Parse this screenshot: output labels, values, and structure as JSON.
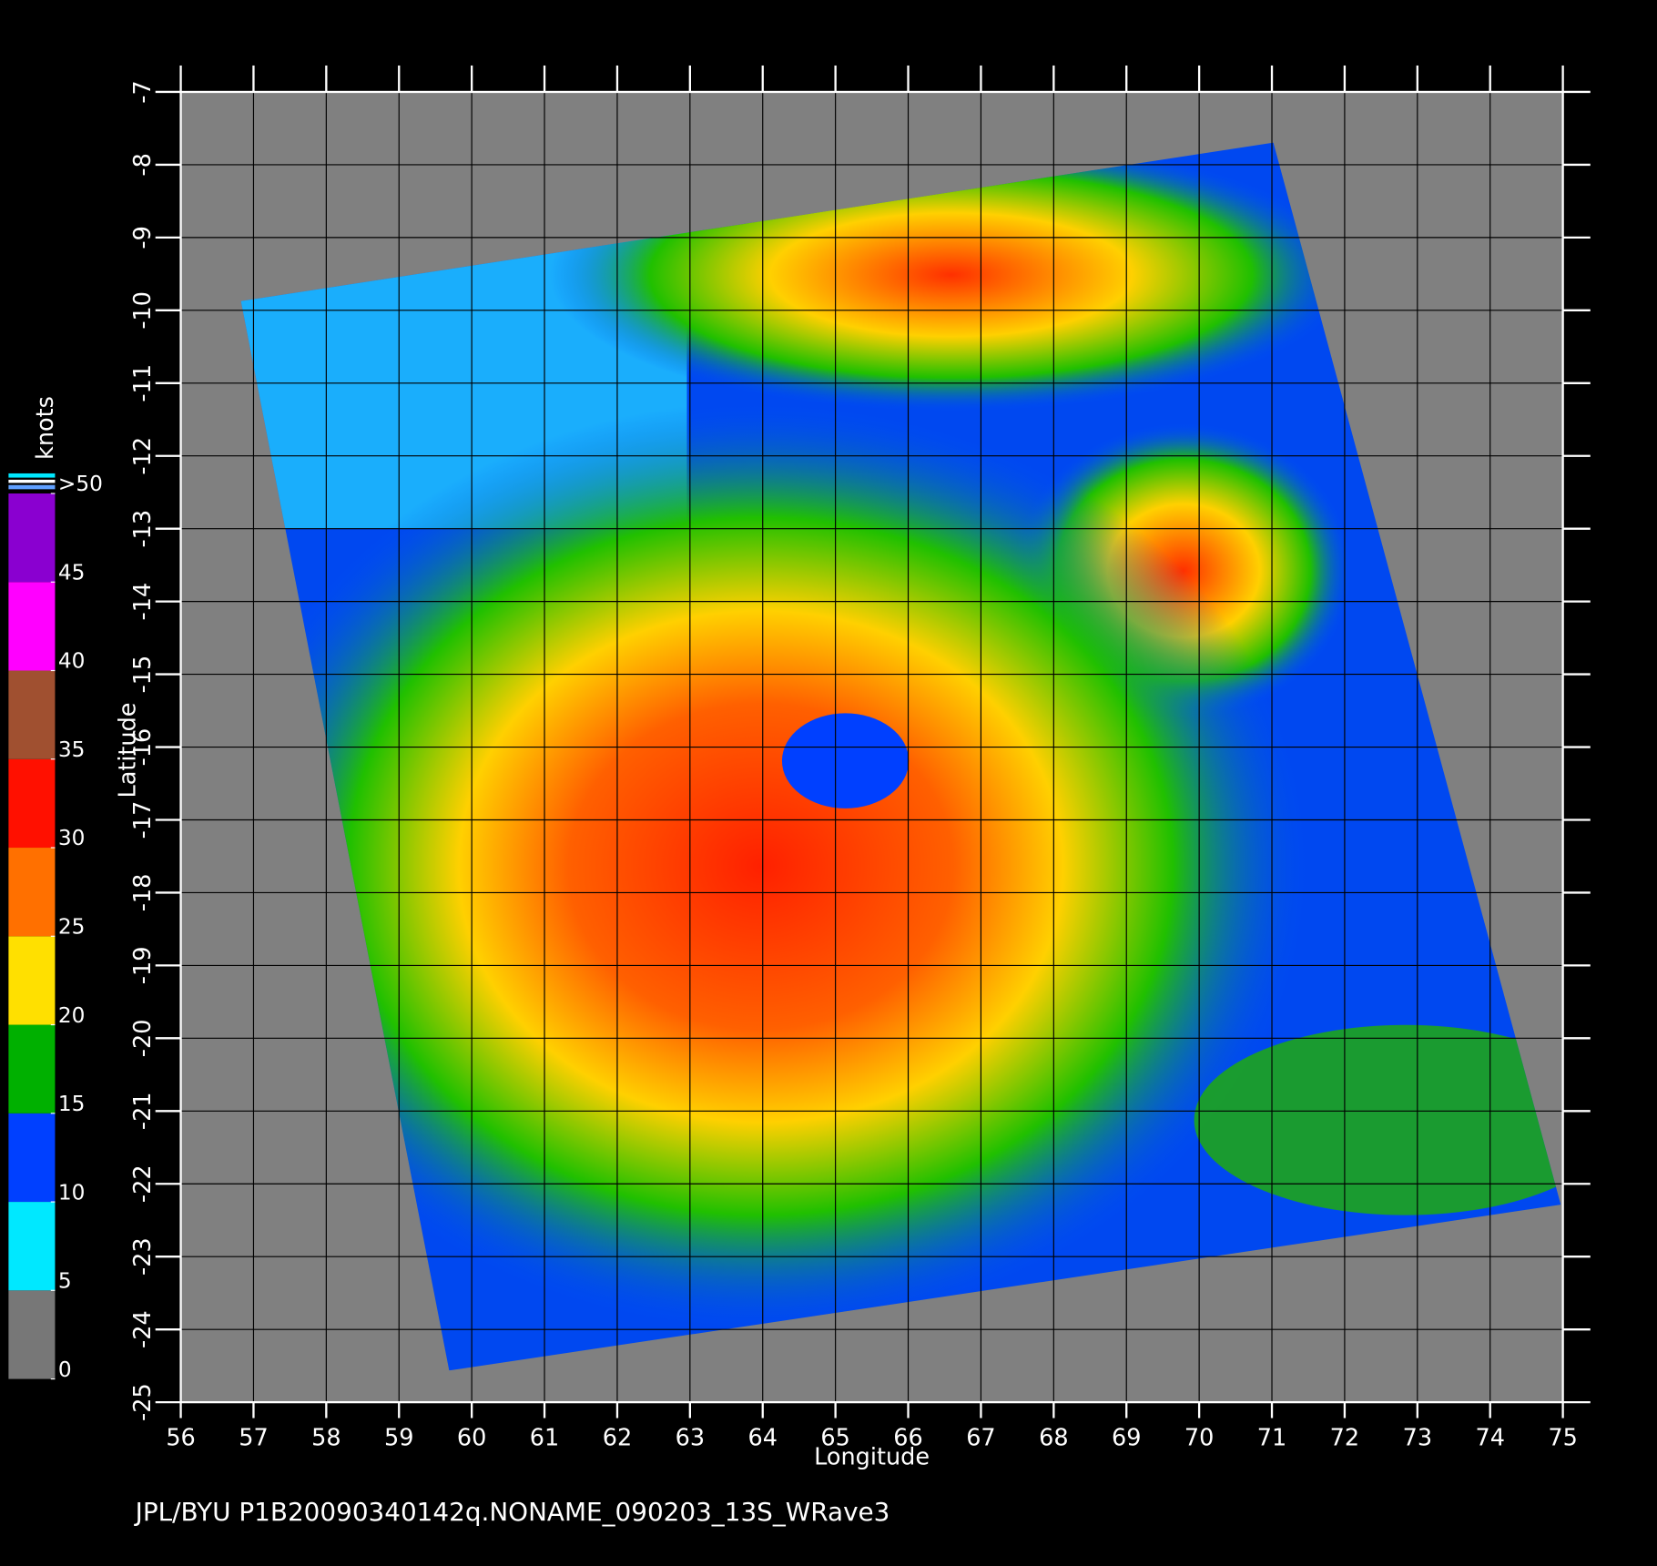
{
  "chart_data": {
    "type": "map",
    "xlabel": "Longitude",
    "ylabel": "Latitude",
    "xlim": [
      56,
      75
    ],
    "ylim": [
      -25,
      -7
    ],
    "xticks": [
      56,
      57,
      58,
      59,
      60,
      61,
      62,
      63,
      64,
      65,
      66,
      67,
      68,
      69,
      70,
      71,
      72,
      73,
      74,
      75
    ],
    "yticks": [
      -7,
      -8,
      -9,
      -10,
      -11,
      -12,
      -13,
      -14,
      -15,
      -16,
      -17,
      -18,
      -19,
      -20,
      -21,
      -22,
      -23,
      -24,
      -25
    ],
    "grid": true,
    "footer": "JPL/BYU  P1B20090340142q.NONAME_090203_13S_WRave3",
    "colorbar": {
      "title": "knots",
      "lim": [
        0,
        50
      ],
      "ticks": [
        0,
        5,
        10,
        15,
        20,
        25,
        30,
        35,
        40,
        45,
        {
          "value": 50,
          "label": ">50"
        }
      ],
      "colors": [
        "#777777",
        "#00e8ff",
        "#0040ff",
        "#00b000",
        "#ffe000",
        "#ff7000",
        "#ff1000",
        "#a05030",
        "#ff00ff",
        "#8a00d0"
      ]
    }
  }
}
